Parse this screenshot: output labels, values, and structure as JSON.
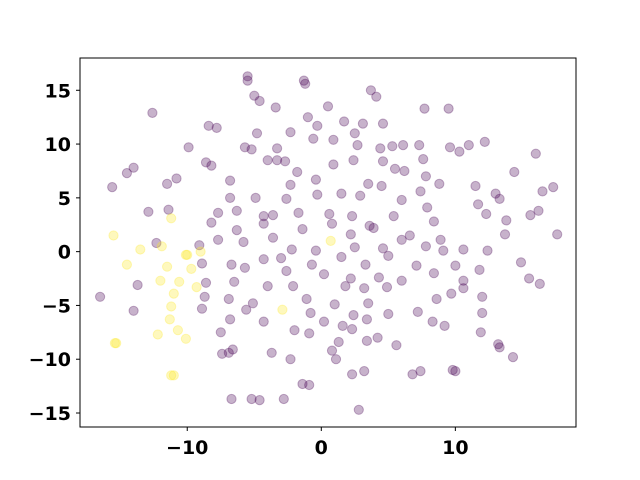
{
  "chart_data": {
    "type": "scatter",
    "title": "",
    "xlabel": "",
    "ylabel": "",
    "xlim": [
      -18,
      19
    ],
    "ylim": [
      -16.3,
      18
    ],
    "grid": false,
    "x_ticks": [
      -10,
      0,
      10
    ],
    "x_tick_labels": [
      "−10",
      "0",
      "10"
    ],
    "y_ticks": [
      -15,
      -10,
      -5,
      0,
      5,
      10,
      15
    ],
    "y_tick_labels": [
      "−15",
      "−10",
      "−5",
      "0",
      "5",
      "10",
      "15"
    ],
    "colors": {
      "class_0": "#440154",
      "class_1": "#fde725"
    },
    "opacity": 0.3,
    "series": [
      {
        "class": 0,
        "points": [
          [
            -5.5,
            16.3
          ],
          [
            -5.5,
            15.9
          ],
          [
            -1.3,
            15.9
          ],
          [
            -1.2,
            15.6
          ],
          [
            3.7,
            15.0
          ],
          [
            4.1,
            14.4
          ],
          [
            -5.0,
            14.5
          ],
          [
            -4.6,
            14.0
          ],
          [
            0.5,
            13.5
          ],
          [
            -3.4,
            13.4
          ],
          [
            7.7,
            13.3
          ],
          [
            9.5,
            13.3
          ],
          [
            -12.6,
            12.9
          ],
          [
            1.7,
            12.1
          ],
          [
            -1.0,
            12.5
          ],
          [
            3.1,
            11.9
          ],
          [
            -0.3,
            11.7
          ],
          [
            -2.3,
            11.1
          ],
          [
            -8.4,
            11.7
          ],
          [
            -7.8,
            11.5
          ],
          [
            4.6,
            11.9
          ],
          [
            2.5,
            11.0
          ],
          [
            -4.8,
            11.0
          ],
          [
            0.9,
            10.4
          ],
          [
            -0.6,
            10.5
          ],
          [
            2.7,
            9.9
          ],
          [
            4.4,
            9.6
          ],
          [
            5.3,
            9.8
          ],
          [
            6.1,
            9.9
          ],
          [
            7.3,
            9.9
          ],
          [
            -9.9,
            9.7
          ],
          [
            -5.7,
            9.7
          ],
          [
            -5.2,
            9.5
          ],
          [
            -3.3,
            9.6
          ],
          [
            9.6,
            9.7
          ],
          [
            10.3,
            9.3
          ],
          [
            12.2,
            10.2
          ],
          [
            -14.0,
            7.8
          ],
          [
            -14.5,
            7.3
          ],
          [
            -2.7,
            8.4
          ],
          [
            -4.0,
            8.5
          ],
          [
            -3.3,
            8.5
          ],
          [
            -8.6,
            8.3
          ],
          [
            -8.2,
            8.0
          ],
          [
            0.9,
            8.1
          ],
          [
            2.4,
            8.5
          ],
          [
            4.6,
            8.4
          ],
          [
            7.6,
            8.6
          ],
          [
            6.2,
            7.5
          ],
          [
            16.0,
            9.1
          ],
          [
            -15.6,
            6.0
          ],
          [
            -10.8,
            6.8
          ],
          [
            -11.5,
            6.3
          ],
          [
            -6.8,
            6.6
          ],
          [
            -2.3,
            6.2
          ],
          [
            -1.8,
            7.4
          ],
          [
            -0.4,
            6.7
          ],
          [
            3.5,
            6.3
          ],
          [
            5.5,
            7.7
          ],
          [
            7.8,
            7.0
          ],
          [
            8.8,
            6.3
          ],
          [
            11.5,
            6.1
          ],
          [
            13.0,
            5.4
          ],
          [
            -6.8,
            5.0
          ],
          [
            -4.9,
            5.0
          ],
          [
            -2.6,
            4.9
          ],
          [
            -0.3,
            5.3
          ],
          [
            1.5,
            5.4
          ],
          [
            2.9,
            5.2
          ],
          [
            4.5,
            6.1
          ],
          [
            7.4,
            5.6
          ],
          [
            6.0,
            4.8
          ],
          [
            11.7,
            4.4
          ],
          [
            13.3,
            4.9
          ],
          [
            16.5,
            5.6
          ],
          [
            17.3,
            6.0
          ],
          [
            -12.9,
            3.7
          ],
          [
            -11.4,
            3.9
          ],
          [
            -7.7,
            3.6
          ],
          [
            -6.3,
            3.8
          ],
          [
            -4.3,
            3.3
          ],
          [
            -3.6,
            3.4
          ],
          [
            -1.7,
            3.6
          ],
          [
            0.6,
            3.5
          ],
          [
            2.3,
            3.3
          ],
          [
            3.6,
            2.4
          ],
          [
            5.4,
            3.3
          ],
          [
            7.9,
            4.1
          ],
          [
            8.4,
            2.8
          ],
          [
            12.3,
            3.5
          ],
          [
            13.8,
            2.9
          ],
          [
            15.6,
            3.4
          ],
          [
            16.2,
            3.8
          ],
          [
            -8.2,
            2.7
          ],
          [
            -6.3,
            2.0
          ],
          [
            -4.3,
            2.6
          ],
          [
            -3.6,
            1.3
          ],
          [
            -1.4,
            2.1
          ],
          [
            0.8,
            2.6
          ],
          [
            2.2,
            1.6
          ],
          [
            3.9,
            2.2
          ],
          [
            6.6,
            1.5
          ],
          [
            8.9,
            1.1
          ],
          [
            10.6,
            0.2
          ],
          [
            13.7,
            1.6
          ],
          [
            17.6,
            1.6
          ],
          [
            -12.3,
            0.8
          ],
          [
            -9.1,
            0.6
          ],
          [
            -7.7,
            1.1
          ],
          [
            -5.8,
            0.9
          ],
          [
            -2.2,
            0.2
          ],
          [
            -0.4,
            0.1
          ],
          [
            2.5,
            0.4
          ],
          [
            4.6,
            0.3
          ],
          [
            6.0,
            1.1
          ],
          [
            7.8,
            0.5
          ],
          [
            9.1,
            0.1
          ],
          [
            12.4,
            0.1
          ],
          [
            -8.9,
            -1.1
          ],
          [
            -6.7,
            -1.2
          ],
          [
            -4.3,
            -0.7
          ],
          [
            -3.0,
            -0.6
          ],
          [
            -0.7,
            -1.2
          ],
          [
            1.5,
            -0.5
          ],
          [
            3.3,
            -1.2
          ],
          [
            5.0,
            -0.4
          ],
          [
            7.1,
            -1.3
          ],
          [
            10.0,
            -1.3
          ],
          [
            11.8,
            -1.7
          ],
          [
            14.9,
            -1.0
          ],
          [
            -5.7,
            -1.5
          ],
          [
            -2.6,
            -1.8
          ],
          [
            0.2,
            -2.1
          ],
          [
            2.2,
            -2.5
          ],
          [
            4.3,
            -2.4
          ],
          [
            6.0,
            -2.7
          ],
          [
            8.4,
            -2.0
          ],
          [
            10.6,
            -2.7
          ],
          [
            15.5,
            -2.5
          ],
          [
            16.3,
            -3.0
          ],
          [
            -13.7,
            -3.1
          ],
          [
            -8.6,
            -2.9
          ],
          [
            -6.5,
            -2.8
          ],
          [
            -4.0,
            -3.2
          ],
          [
            -2.1,
            -3.2
          ],
          [
            1.8,
            -3.2
          ],
          [
            3.2,
            -3.4
          ],
          [
            4.9,
            -3.3
          ],
          [
            10.6,
            -3.4
          ],
          [
            12.0,
            -4.2
          ],
          [
            -16.5,
            -4.2
          ],
          [
            -8.7,
            -4.2
          ],
          [
            -6.9,
            -4.4
          ],
          [
            -5.1,
            -4.8
          ],
          [
            -1.1,
            -4.4
          ],
          [
            1.0,
            -4.9
          ],
          [
            3.5,
            -4.8
          ],
          [
            8.6,
            -4.4
          ],
          [
            9.7,
            -3.9
          ],
          [
            -14.0,
            -5.5
          ],
          [
            -8.9,
            -5.3
          ],
          [
            -5.6,
            -5.4
          ],
          [
            -0.8,
            -5.7
          ],
          [
            2.4,
            -5.9
          ],
          [
            5.0,
            -5.8
          ],
          [
            7.2,
            -5.6
          ],
          [
            12.0,
            -5.7
          ],
          [
            -6.8,
            -6.3
          ],
          [
            -4.3,
            -6.5
          ],
          [
            0.2,
            -6.5
          ],
          [
            1.6,
            -6.9
          ],
          [
            3.4,
            -6.3
          ],
          [
            8.3,
            -6.5
          ],
          [
            9.2,
            -6.9
          ],
          [
            -7.5,
            -7.5
          ],
          [
            -2.0,
            -7.3
          ],
          [
            -0.9,
            -7.6
          ],
          [
            2.3,
            -7.2
          ],
          [
            4.2,
            -8.0
          ],
          [
            11.9,
            -7.5
          ],
          [
            -6.6,
            -9.1
          ],
          [
            -6.9,
            -9.4
          ],
          [
            -7.4,
            -9.5
          ],
          [
            -3.7,
            -9.4
          ],
          [
            1.3,
            -8.4
          ],
          [
            3.4,
            -8.3
          ],
          [
            5.6,
            -8.7
          ],
          [
            13.2,
            -8.6
          ],
          [
            13.3,
            -8.9
          ],
          [
            0.8,
            -9.2
          ],
          [
            -2.3,
            -10.0
          ],
          [
            1.1,
            -10.0
          ],
          [
            14.3,
            -9.8
          ],
          [
            9.8,
            -11.0
          ],
          [
            10.0,
            -11.1
          ],
          [
            2.3,
            -11.4
          ],
          [
            3.2,
            -11.1
          ],
          [
            6.8,
            -11.4
          ],
          [
            7.4,
            -11.1
          ],
          [
            -1.4,
            -12.3
          ],
          [
            -0.9,
            -12.4
          ],
          [
            -6.7,
            -13.7
          ],
          [
            -5.2,
            -13.7
          ],
          [
            -4.6,
            -13.8
          ],
          [
            -2.8,
            -13.7
          ],
          [
            2.8,
            -14.7
          ],
          [
            14.4,
            7.4
          ],
          [
            11.0,
            9.9
          ]
        ]
      },
      {
        "class": 1,
        "points": [
          [
            -15.5,
            1.5
          ],
          [
            -14.5,
            -1.2
          ],
          [
            -13.5,
            0.2
          ],
          [
            -11.9,
            0.5
          ],
          [
            -11.2,
            3.1
          ],
          [
            -11.5,
            -1.4
          ],
          [
            -10.1,
            -0.3
          ],
          [
            -10.0,
            -0.3
          ],
          [
            -9.7,
            -1.6
          ],
          [
            -9.0,
            0.0
          ],
          [
            -12.0,
            -2.7
          ],
          [
            -10.6,
            -2.8
          ],
          [
            -11.0,
            -3.9
          ],
          [
            -9.3,
            -3.3
          ],
          [
            -11.2,
            -5.1
          ],
          [
            -11.3,
            -6.3
          ],
          [
            -12.2,
            -7.7
          ],
          [
            -10.7,
            -7.3
          ],
          [
            -10.1,
            -8.1
          ],
          [
            -15.3,
            -8.5
          ],
          [
            -15.4,
            -8.5
          ],
          [
            -11.0,
            -11.5
          ],
          [
            -11.2,
            -11.5
          ],
          [
            -2.9,
            -5.4
          ],
          [
            0.7,
            1.0
          ]
        ]
      }
    ]
  }
}
